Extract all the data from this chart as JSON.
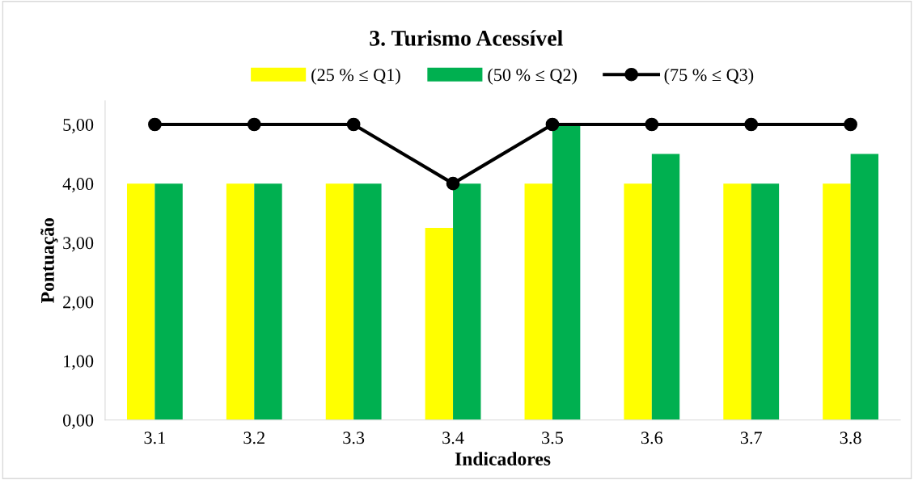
{
  "chart_data": {
    "type": "bar",
    "title": "3. Turismo Acessível",
    "xlabel": "Indicadores",
    "ylabel": "Pontuação",
    "categories": [
      "3.1",
      "3.2",
      "3.3",
      "3.4",
      "3.5",
      "3.6",
      "3.7",
      "3.8"
    ],
    "series": [
      {
        "name": "(25 % ≤ Q1)",
        "color": "#ffff00",
        "values": [
          4,
          4,
          4,
          3.25,
          4,
          4,
          4,
          4
        ]
      },
      {
        "name": "(50 % ≤ Q2)",
        "color": "#00b050",
        "values": [
          4,
          4,
          4,
          4,
          5,
          4.5,
          4,
          4.5
        ]
      },
      {
        "name": "(75 % ≤ Q3)",
        "color": "#000000",
        "type": "line",
        "marker": "circle",
        "values": [
          5,
          5,
          5,
          4,
          5,
          5,
          5,
          5
        ]
      }
    ],
    "ylim": [
      0,
      5.4
    ],
    "yticks": [
      {
        "value": 0,
        "label": "0,00"
      },
      {
        "value": 1,
        "label": "1,00"
      },
      {
        "value": 2,
        "label": "2,00"
      },
      {
        "value": 3,
        "label": "3,00"
      },
      {
        "value": 4,
        "label": "4,00"
      },
      {
        "value": 5,
        "label": "5,00"
      }
    ],
    "grid": false,
    "legend": "top"
  }
}
